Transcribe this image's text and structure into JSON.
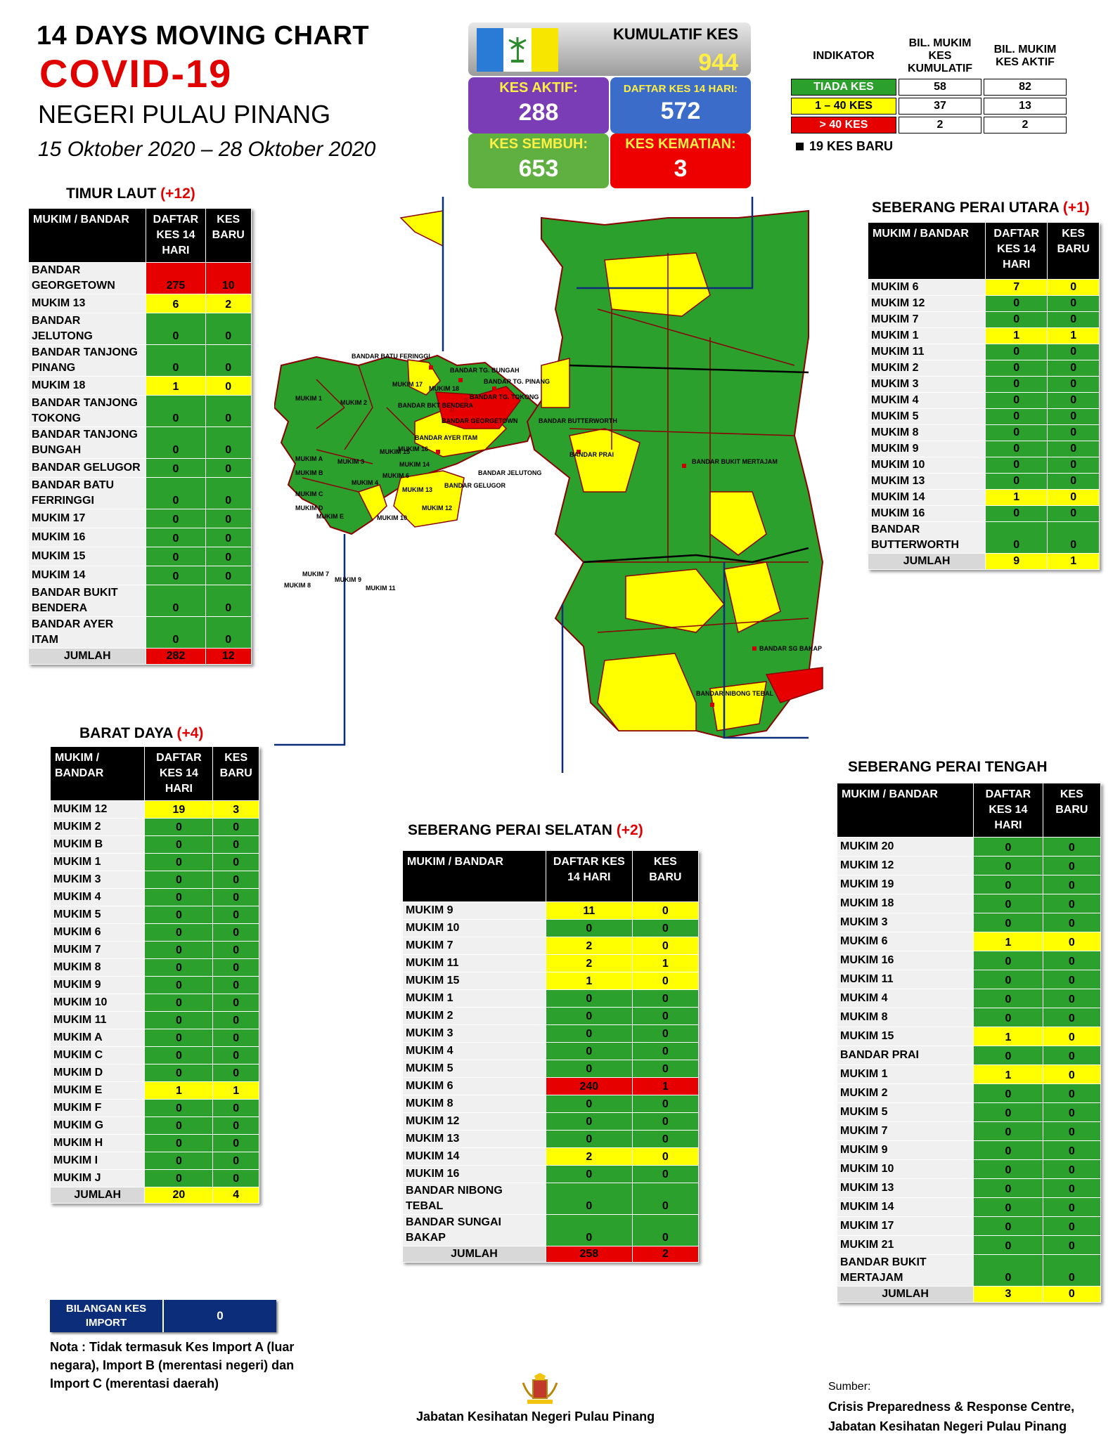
{
  "header": {
    "line1": "14  DAYS MOVING CHART",
    "line2": "COVID-19",
    "line3": "NEGERI PULAU PINANG",
    "line4": "15 Oktober 2020 – 28 Oktober 2020"
  },
  "stats": {
    "kumulatif_label": "KUMULATIF KES",
    "kumulatif_value": "944",
    "aktif_label": "KES AKTIF:",
    "aktif_value": "288",
    "daftar_label": "DAFTAR KES 14 HARI:",
    "daftar_value": "572",
    "sembuh_label": "KES SEMBUH:",
    "sembuh_value": "653",
    "kematian_label": "KES KEMATIAN:",
    "kematian_value": "3"
  },
  "legend": {
    "h_indikator": "INDIKATOR",
    "h_kumulatif": "BIL. MUKIM KES KUMULATIF",
    "h_aktif": "BIL. MUKIM KES AKTIF",
    "rows": [
      {
        "label": "TIADA KES",
        "kumulatif": "58",
        "aktif": "82",
        "color": "#2ca02c"
      },
      {
        "label": "1 – 40 KES",
        "kumulatif": "37",
        "aktif": "13",
        "color": "#ffff00"
      },
      {
        "label": "> 40 KES",
        "kumulatif": "2",
        "aktif": "2",
        "color": "#e60000"
      }
    ],
    "new_cases": "19 KES BARU"
  },
  "col_headers": {
    "mukim": "MUKIM / BANDAR",
    "daftar": "DAFTAR KES 14 HARI",
    "baru": "KES BARU"
  },
  "timur_laut": {
    "title": "TIMUR LAUT",
    "plus": "(+12)",
    "rows": [
      [
        "BANDAR GEORGETOWN",
        "275",
        "10"
      ],
      [
        "MUKIM 13",
        "6",
        "2"
      ],
      [
        "BANDAR JELUTONG",
        "0",
        "0"
      ],
      [
        "BANDAR TANJONG PINANG",
        "0",
        "0"
      ],
      [
        "MUKIM 18",
        "1",
        "0"
      ],
      [
        "BANDAR TANJONG TOKONG",
        "0",
        "0"
      ],
      [
        "BANDAR TANJONG BUNGAH",
        "0",
        "0"
      ],
      [
        "BANDAR GELUGOR",
        "0",
        "0"
      ],
      [
        "BANDAR BATU FERRINGGI",
        "0",
        "0"
      ],
      [
        "MUKIM 17",
        "0",
        "0"
      ],
      [
        "MUKIM 16",
        "0",
        "0"
      ],
      [
        "MUKIM 15",
        "0",
        "0"
      ],
      [
        "MUKIM 14",
        "0",
        "0"
      ],
      [
        "BANDAR BUKIT BENDERA",
        "0",
        "0"
      ],
      [
        "BANDAR AYER ITAM",
        "0",
        "0"
      ]
    ],
    "total": [
      "JUMLAH",
      "282",
      "12"
    ]
  },
  "barat_daya": {
    "title": "BARAT DAYA",
    "plus": "(+4)",
    "rows": [
      [
        "MUKIM 12",
        "19",
        "3"
      ],
      [
        "MUKIM 2",
        "0",
        "0"
      ],
      [
        "MUKIM B",
        "0",
        "0"
      ],
      [
        "MUKIM 1",
        "0",
        "0"
      ],
      [
        "MUKIM 3",
        "0",
        "0"
      ],
      [
        "MUKIM 4",
        "0",
        "0"
      ],
      [
        "MUKIM 5",
        "0",
        "0"
      ],
      [
        "MUKIM 6",
        "0",
        "0"
      ],
      [
        "MUKIM 7",
        "0",
        "0"
      ],
      [
        "MUKIM 8",
        "0",
        "0"
      ],
      [
        "MUKIM 9",
        "0",
        "0"
      ],
      [
        "MUKIM 10",
        "0",
        "0"
      ],
      [
        "MUKIM 11",
        "0",
        "0"
      ],
      [
        "MUKIM A",
        "0",
        "0"
      ],
      [
        "MUKIM C",
        "0",
        "0"
      ],
      [
        "MUKIM D",
        "0",
        "0"
      ],
      [
        "MUKIM E",
        "1",
        "1"
      ],
      [
        "MUKIM F",
        "0",
        "0"
      ],
      [
        "MUKIM G",
        "0",
        "0"
      ],
      [
        "MUKIM H",
        "0",
        "0"
      ],
      [
        "MUKIM I",
        "0",
        "0"
      ],
      [
        "MUKIM J",
        "0",
        "0"
      ]
    ],
    "total": [
      "JUMLAH",
      "20",
      "4"
    ]
  },
  "spu": {
    "title": "SEBERANG PERAI UTARA",
    "plus": "(+1)",
    "rows": [
      [
        "MUKIM 6",
        "7",
        "0"
      ],
      [
        "MUKIM 12",
        "0",
        "0"
      ],
      [
        "MUKIM 7",
        "0",
        "0"
      ],
      [
        "MUKIM 1",
        "1",
        "1"
      ],
      [
        "MUKIM 11",
        "0",
        "0"
      ],
      [
        "MUKIM 2",
        "0",
        "0"
      ],
      [
        "MUKIM 3",
        "0",
        "0"
      ],
      [
        "MUKIM 4",
        "0",
        "0"
      ],
      [
        "MUKIM 5",
        "0",
        "0"
      ],
      [
        "MUKIM 8",
        "0",
        "0"
      ],
      [
        "MUKIM 9",
        "0",
        "0"
      ],
      [
        "MUKIM 10",
        "0",
        "0"
      ],
      [
        "MUKIM 13",
        "0",
        "0"
      ],
      [
        "MUKIM 14",
        "1",
        "0"
      ],
      [
        "MUKIM 16",
        "0",
        "0"
      ],
      [
        "BANDAR BUTTERWORTH",
        "0",
        "0"
      ]
    ],
    "total": [
      "JUMLAH",
      "9",
      "1"
    ]
  },
  "sps": {
    "title": "SEBERANG PERAI SELATAN",
    "plus": "(+2)",
    "rows": [
      [
        "MUKIM 9",
        "11",
        "0"
      ],
      [
        "MUKIM 10",
        "0",
        "0"
      ],
      [
        "MUKIM 7",
        "2",
        "0"
      ],
      [
        "MUKIM 11",
        "2",
        "1"
      ],
      [
        "MUKIM 15",
        "1",
        "0"
      ],
      [
        "MUKIM 1",
        "0",
        "0"
      ],
      [
        "MUKIM 2",
        "0",
        "0"
      ],
      [
        "MUKIM 3",
        "0",
        "0"
      ],
      [
        "MUKIM 4",
        "0",
        "0"
      ],
      [
        "MUKIM 5",
        "0",
        "0"
      ],
      [
        "MUKIM 6",
        "240",
        "1"
      ],
      [
        "MUKIM 8",
        "0",
        "0"
      ],
      [
        "MUKIM 12",
        "0",
        "0"
      ],
      [
        "MUKIM 13",
        "0",
        "0"
      ],
      [
        "MUKIM 14",
        "2",
        "0"
      ],
      [
        "MUKIM 16",
        "0",
        "0"
      ],
      [
        "BANDAR NIBONG TEBAL",
        "0",
        "0"
      ],
      [
        "BANDAR SUNGAI BAKAP",
        "0",
        "0"
      ]
    ],
    "total": [
      "JUMLAH",
      "258",
      "2"
    ]
  },
  "spt": {
    "title": "SEBERANG PERAI TENGAH",
    "plus": "",
    "rows": [
      [
        "MUKIM 20",
        "0",
        "0"
      ],
      [
        "MUKIM 12",
        "0",
        "0"
      ],
      [
        "MUKIM 19",
        "0",
        "0"
      ],
      [
        "MUKIM 18",
        "0",
        "0"
      ],
      [
        "MUKIM 3",
        "0",
        "0"
      ],
      [
        "MUKIM 6",
        "1",
        "0"
      ],
      [
        "MUKIM 16",
        "0",
        "0"
      ],
      [
        "MUKIM 11",
        "0",
        "0"
      ],
      [
        "MUKIM 4",
        "0",
        "0"
      ],
      [
        "MUKIM 8",
        "0",
        "0"
      ],
      [
        "MUKIM 15",
        "1",
        "0"
      ],
      [
        "BANDAR PRAI",
        "0",
        "0"
      ],
      [
        "MUKIM 1",
        "1",
        "0"
      ],
      [
        "MUKIM 2",
        "0",
        "0"
      ],
      [
        "MUKIM 5",
        "0",
        "0"
      ],
      [
        "MUKIM 7",
        "0",
        "0"
      ],
      [
        "MUKIM 9",
        "0",
        "0"
      ],
      [
        "MUKIM 10",
        "0",
        "0"
      ],
      [
        "MUKIM 13",
        "0",
        "0"
      ],
      [
        "MUKIM 14",
        "0",
        "0"
      ],
      [
        "MUKIM 17",
        "0",
        "0"
      ],
      [
        "MUKIM 21",
        "0",
        "0"
      ],
      [
        "BANDAR BUKIT MERTAJAM",
        "0",
        "0"
      ]
    ],
    "total": [
      "JUMLAH",
      "3",
      "0"
    ]
  },
  "map_labels": {
    "island": [
      "BANDAR BATU FERINGGI",
      "BANDAR TG. BUNGAH",
      "BANDAR TG. PINANG",
      "BANDAR TG. TOKONG",
      "BANDAR GEORGETOWN",
      "BANDAR AYER ITAM",
      "BANDAR JELUTONG",
      "BANDAR GELUGOR",
      "BANDAR BKT BENDERA",
      "MUKIM 1",
      "MUKIM 2",
      "MUKIM 3",
      "MUKIM 4",
      "MUKIM 6",
      "MUKIM 10",
      "MUKIM 12",
      "MUKIM 13",
      "MUKIM 14",
      "MUKIM 15",
      "MUKIM 16",
      "MUKIM 17",
      "MUKIM 18",
      "MUKIM A",
      "MUKIM B",
      "MUKIM C",
      "MUKIM D",
      "MUKIM E",
      "MUKIM 7",
      "MUKIM 8",
      "MUKIM 9",
      "MUKIM 11"
    ],
    "mainland": [
      "BANDAR BUTTERWORTH",
      "BANDAR PRAI",
      "BANDAR BUKIT MERTAJAM",
      "BANDAR SG BAKAP",
      "BANDAR NIBONG TEBAL"
    ]
  },
  "import": {
    "label": "BILANGAN KES IMPORT",
    "value": "0"
  },
  "nota": "Nota : Tidak termasuk Kes Import A (luar negara), Import B (merentasi negeri) dan Import C (merentasi daerah)",
  "footer": {
    "dept": "Jabatan Kesihatan Negeri Pulau Pinang",
    "sumber": "Sumber:",
    "src1": "Crisis Preparedness & Response Centre,",
    "src2": "Jabatan Kesihatan Negeri Pulau Pinang"
  },
  "colors": {
    "green": "#2ca02c",
    "yellow": "#ffff00",
    "red": "#e60000",
    "purple": "#7a3db5",
    "blue": "#3b6cc9"
  }
}
